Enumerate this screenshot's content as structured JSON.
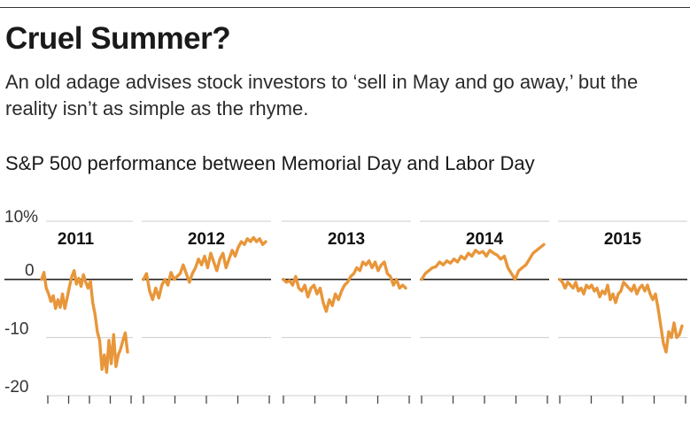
{
  "header": {
    "title": "Cruel Summer?",
    "subtitle": "An old adage advises stock investors to ‘sell in May and go away,’ but the reality isn’t as simple as the rhyme."
  },
  "chart_data": {
    "type": "line",
    "title": "S&P 500 performance between Memorial Day and Labor Day",
    "units": "%",
    "ylim": [
      -20,
      10
    ],
    "yticks": [
      10,
      0,
      -10,
      -20
    ],
    "ytick_labels": [
      "10%",
      "0",
      "-10",
      "-20"
    ],
    "grid": true,
    "line_color": "#e8963a",
    "panels": [
      {
        "label": "2011",
        "values": [
          0,
          1.2,
          -1.5,
          -2.5,
          -3.8,
          -2.8,
          -5,
          -3.5,
          -4.8,
          -2.5,
          -5,
          -3.2,
          -1.2,
          0.5,
          1.5,
          -0.8,
          0.2,
          -1.2,
          0.8,
          -0.5,
          -1.5,
          -0.3,
          -4,
          -6,
          -9,
          -10.5,
          -15.5,
          -13,
          -16,
          -10.5,
          -14.5,
          -9.5,
          -15,
          -13,
          -12,
          -10.5,
          -9.2,
          -12.5
        ]
      },
      {
        "label": "2012",
        "values": [
          0,
          1,
          -2,
          -3.5,
          -1.5,
          -3.2,
          -1,
          0,
          -1,
          1.2,
          0,
          0.5,
          1,
          2.5,
          1,
          -0.5,
          1,
          2,
          3.5,
          2.5,
          4,
          2,
          4.5,
          3,
          1.5,
          3.5,
          4.5,
          2,
          3.5,
          5,
          4,
          5.5,
          6.5,
          6,
          7,
          6.5,
          7.2,
          6.5,
          7,
          6,
          6.5
        ]
      },
      {
        "label": "2013",
        "values": [
          0,
          -0.5,
          -0.2,
          -1,
          0.5,
          -1.5,
          -2,
          -1,
          -3,
          -1.5,
          -1,
          -2.5,
          -1.5,
          -4,
          -5.5,
          -3.5,
          -4.5,
          -2.5,
          -3.5,
          -2,
          -1,
          -0.5,
          0.5,
          1,
          2,
          1.5,
          3,
          2.5,
          3.2,
          2,
          3,
          1.5,
          2.5,
          3,
          1,
          0.5,
          -1,
          0,
          -1.5,
          -1,
          -1.5
        ]
      },
      {
        "label": "2014",
        "values": [
          0,
          1,
          1.5,
          2,
          2.2,
          3,
          2.5,
          3.2,
          2.8,
          3.5,
          3,
          4,
          3.5,
          4.5,
          4,
          5,
          4.5,
          4.8,
          4,
          5,
          4.5,
          4.2,
          3.5,
          4,
          2,
          1,
          0,
          1.5,
          2,
          2.5,
          3.5,
          4.5,
          5,
          5.5,
          6
        ]
      },
      {
        "label": "2015",
        "values": [
          0,
          -0.5,
          -1.5,
          -0.5,
          -1,
          -1.5,
          -0.5,
          -2,
          -1.5,
          -2.5,
          -1,
          -1.5,
          -1,
          -2,
          -1.5,
          -3,
          -2,
          -2.5,
          -1,
          -3.5,
          -2.5,
          -4,
          -2.5,
          -2,
          -0.5,
          -1,
          -1.5,
          -2,
          -1,
          -2.5,
          -1.5,
          -1,
          -2,
          -1,
          -2.5,
          -3.5,
          -2.5,
          -5,
          -8,
          -11,
          -12.5,
          -9,
          -10,
          -7.5,
          -10,
          -9.5,
          -8
        ]
      }
    ]
  }
}
